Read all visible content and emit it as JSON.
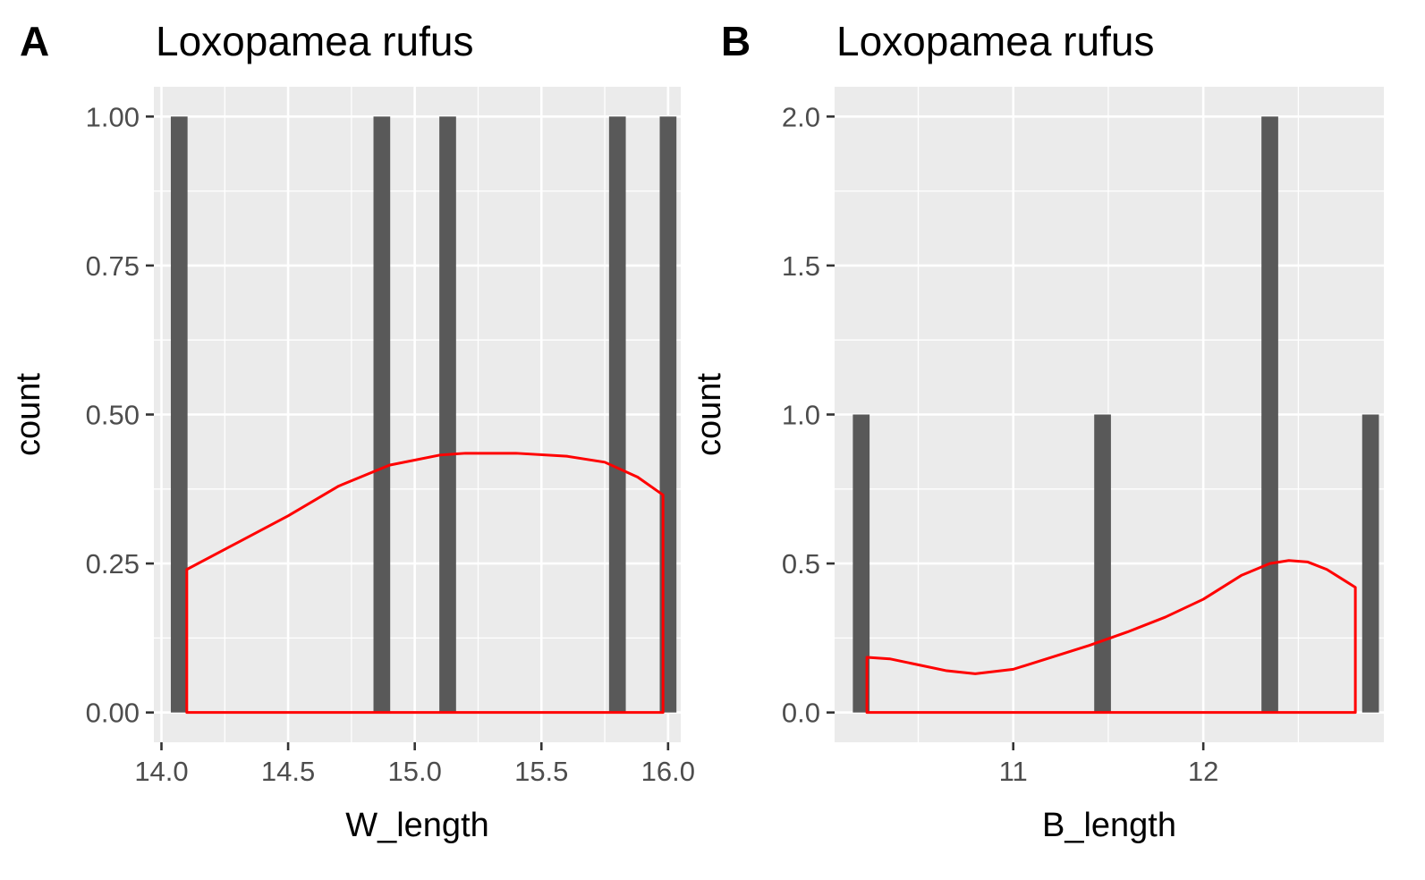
{
  "chart_data": [
    {
      "type": "bar",
      "panel_label": "A",
      "title": "Loxopamea rufus",
      "xlabel": "W_length",
      "ylabel": "count",
      "xlim": [
        13.97,
        16.05
      ],
      "ylim": [
        -0.05,
        1.05
      ],
      "x_ticks": [
        14.0,
        14.5,
        15.0,
        15.5,
        16.0
      ],
      "x_tick_labels": [
        "14.0",
        "14.5",
        "15.0",
        "15.5",
        "16.0"
      ],
      "y_ticks": [
        0,
        0.25,
        0.5,
        0.75,
        1.0
      ],
      "y_tick_labels": [
        "0.00",
        "0.25",
        "0.50",
        "0.75",
        "1.00"
      ],
      "bar_width": 0.066,
      "bars": [
        {
          "x": 14.07,
          "count": 1
        },
        {
          "x": 14.87,
          "count": 1
        },
        {
          "x": 15.13,
          "count": 1
        },
        {
          "x": 15.8,
          "count": 1
        },
        {
          "x": 16.0,
          "count": 1
        }
      ],
      "density": {
        "color": "#ff0000",
        "x": [
          14.1,
          14.3,
          14.5,
          14.7,
          14.9,
          15.1,
          15.2,
          15.4,
          15.6,
          15.75,
          15.88,
          15.98
        ],
        "y": [
          0.24,
          0.285,
          0.33,
          0.38,
          0.415,
          0.432,
          0.435,
          0.435,
          0.43,
          0.42,
          0.395,
          0.365
        ]
      },
      "grid": true,
      "background": "#ebebeb",
      "bar_color": "#595959"
    },
    {
      "type": "bar",
      "panel_label": "B",
      "title": "Loxopamea rufus",
      "xlabel": "B_length",
      "ylabel": "count",
      "xlim": [
        10.06,
        12.95
      ],
      "ylim": [
        -0.1,
        2.1
      ],
      "x_ticks": [
        11,
        12
      ],
      "x_tick_labels": [
        "11",
        "12"
      ],
      "x_minor_ticks": [
        10.5,
        11.5,
        12.5
      ],
      "y_ticks": [
        0,
        0.5,
        1.0,
        1.5,
        2.0
      ],
      "y_tick_labels": [
        "0.0",
        "0.5",
        "1.0",
        "1.5",
        "2.0"
      ],
      "bar_width": 0.088,
      "bars": [
        {
          "x": 10.2,
          "count": 1
        },
        {
          "x": 11.47,
          "count": 1
        },
        {
          "x": 12.35,
          "count": 2
        },
        {
          "x": 12.88,
          "count": 1
        }
      ],
      "density": {
        "color": "#ff0000",
        "x": [
          10.23,
          10.35,
          10.5,
          10.65,
          10.8,
          11.0,
          11.2,
          11.4,
          11.6,
          11.8,
          12.0,
          12.2,
          12.35,
          12.45,
          12.55,
          12.65,
          12.75,
          12.8
        ],
        "y": [
          0.185,
          0.18,
          0.16,
          0.14,
          0.13,
          0.145,
          0.185,
          0.225,
          0.27,
          0.32,
          0.38,
          0.46,
          0.5,
          0.51,
          0.505,
          0.48,
          0.44,
          0.42
        ]
      },
      "grid": true,
      "background": "#ebebeb",
      "bar_color": "#595959"
    }
  ]
}
